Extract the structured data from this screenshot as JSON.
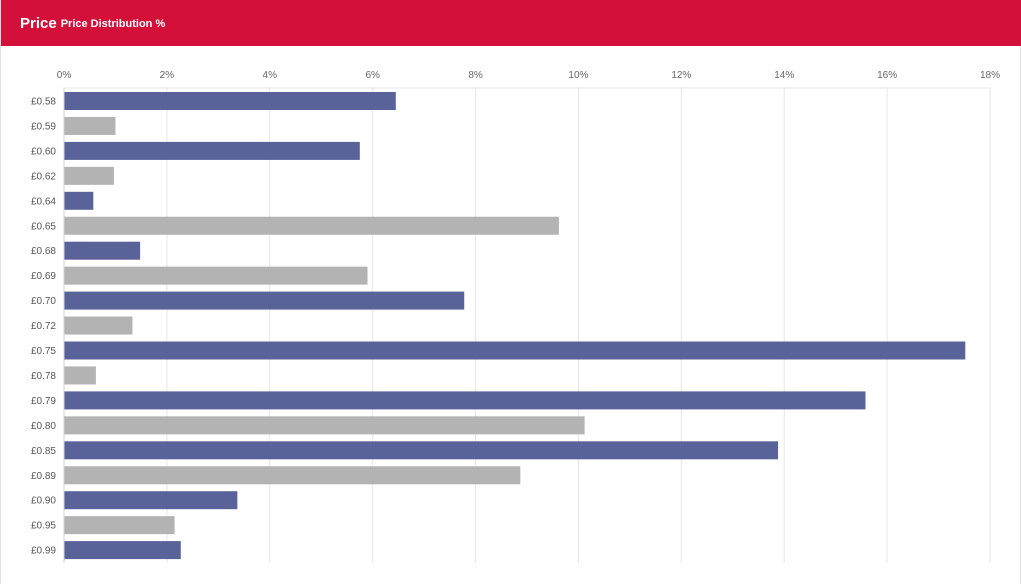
{
  "header": {
    "title": "Price",
    "subtitle": "Price Distribution %"
  },
  "colors": {
    "header_bg": "#d3103a",
    "bar_primary": "#5a6399",
    "bar_secondary": "#b3b3b3",
    "grid": "#e6e6e6"
  },
  "chart_data": {
    "type": "bar",
    "orientation": "horizontal",
    "title": "Price Distribution %",
    "xlabel": "",
    "ylabel": "",
    "xlim": [
      0,
      18
    ],
    "x_ticks": [
      "0%",
      "2%",
      "4%",
      "6%",
      "8%",
      "10%",
      "12%",
      "14%",
      "16%",
      "18%"
    ],
    "grid": true,
    "x_axis_position": "top",
    "categories": [
      "£0.58",
      "£0.59",
      "£0.60",
      "£0.62",
      "£0.64",
      "£0.65",
      "£0.68",
      "£0.69",
      "£0.70",
      "£0.72",
      "£0.75",
      "£0.78",
      "£0.79",
      "£0.80",
      "£0.85",
      "£0.89",
      "£0.90",
      "£0.95",
      "£0.99"
    ],
    "values": [
      6.45,
      1.0,
      5.75,
      0.97,
      0.57,
      9.62,
      1.48,
      5.9,
      7.78,
      1.33,
      17.52,
      0.62,
      15.58,
      10.12,
      13.88,
      8.87,
      3.37,
      2.15,
      2.27
    ],
    "bar_colors": [
      "#5a6399",
      "#b3b3b3",
      "#5a6399",
      "#b3b3b3",
      "#5a6399",
      "#b3b3b3",
      "#5a6399",
      "#b3b3b3",
      "#5a6399",
      "#b3b3b3",
      "#5a6399",
      "#b3b3b3",
      "#5a6399",
      "#b3b3b3",
      "#5a6399",
      "#b3b3b3",
      "#5a6399",
      "#b3b3b3",
      "#5a6399"
    ]
  }
}
